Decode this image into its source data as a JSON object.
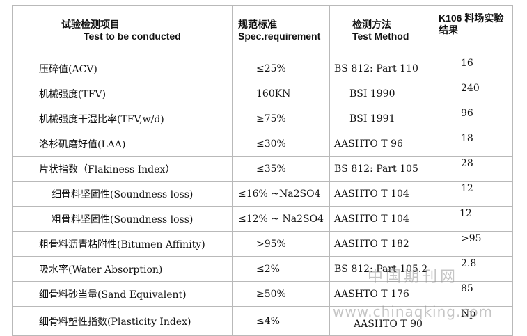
{
  "headers": {
    "item_zh": "试验检测项目",
    "item_en": "Test to be conducted",
    "spec_zh": "规范标准",
    "spec_en": "Spec.requirement",
    "method_zh": "检测方法",
    "method_en": "Test Method",
    "result_line1": "K106 料场实验",
    "result_line2": "结果"
  },
  "rows": [
    {
      "item": "压碎值(ACV)",
      "spec": "≤25%",
      "method": "BS 812: Part 110",
      "result": "16"
    },
    {
      "item": "机械强度(TFV)",
      "spec": "160KN",
      "method": "BSI 1990",
      "result": "240"
    },
    {
      "item": "机械强度干湿比率(TFV,w/d)",
      "spec": "≥75%",
      "method": "BSI 1991",
      "result": "96"
    },
    {
      "item": "洛杉矶磨好值(LAA)",
      "spec": "≤30%",
      "method": "AASHTO T 96",
      "result": "18"
    },
    {
      "item": "片状指数（Flakiness Index）",
      "spec": "≤35%",
      "method": "BS 812: Part 105",
      "result": "28"
    },
    {
      "item": "细骨料坚固性(Soundness loss)",
      "spec": "≤16% ~Na2SO4",
      "method": "AASHTO T 104",
      "result": "12"
    },
    {
      "item": "粗骨料坚固性(Soundness loss)",
      "spec": "≤12% ~ Na2SO4",
      "method": "AASHTO T 104",
      "result": "12"
    },
    {
      "item": "粗骨料沥青粘附性(Bitumen Affinity)",
      "spec": ">95%",
      "method": "AASHTO T 182",
      "result": ">95"
    },
    {
      "item": "吸水率(Water Absorption)",
      "spec": "≤2%",
      "method": "BS 812: Part 105.2",
      "result": "2.8"
    },
    {
      "item": "细骨料砂当量(Sand Equivalent)",
      "spec": "≥50%",
      "method": "AASHTO T 176",
      "result": "85"
    },
    {
      "item": "细骨料塑性指数(Plasticity Index)",
      "spec": "≤4%",
      "method": "AASHTO T 90",
      "result": "Np"
    }
  ],
  "watermark": {
    "line1": "中国期刊网",
    "line2": "www.chinaqking.com"
  }
}
